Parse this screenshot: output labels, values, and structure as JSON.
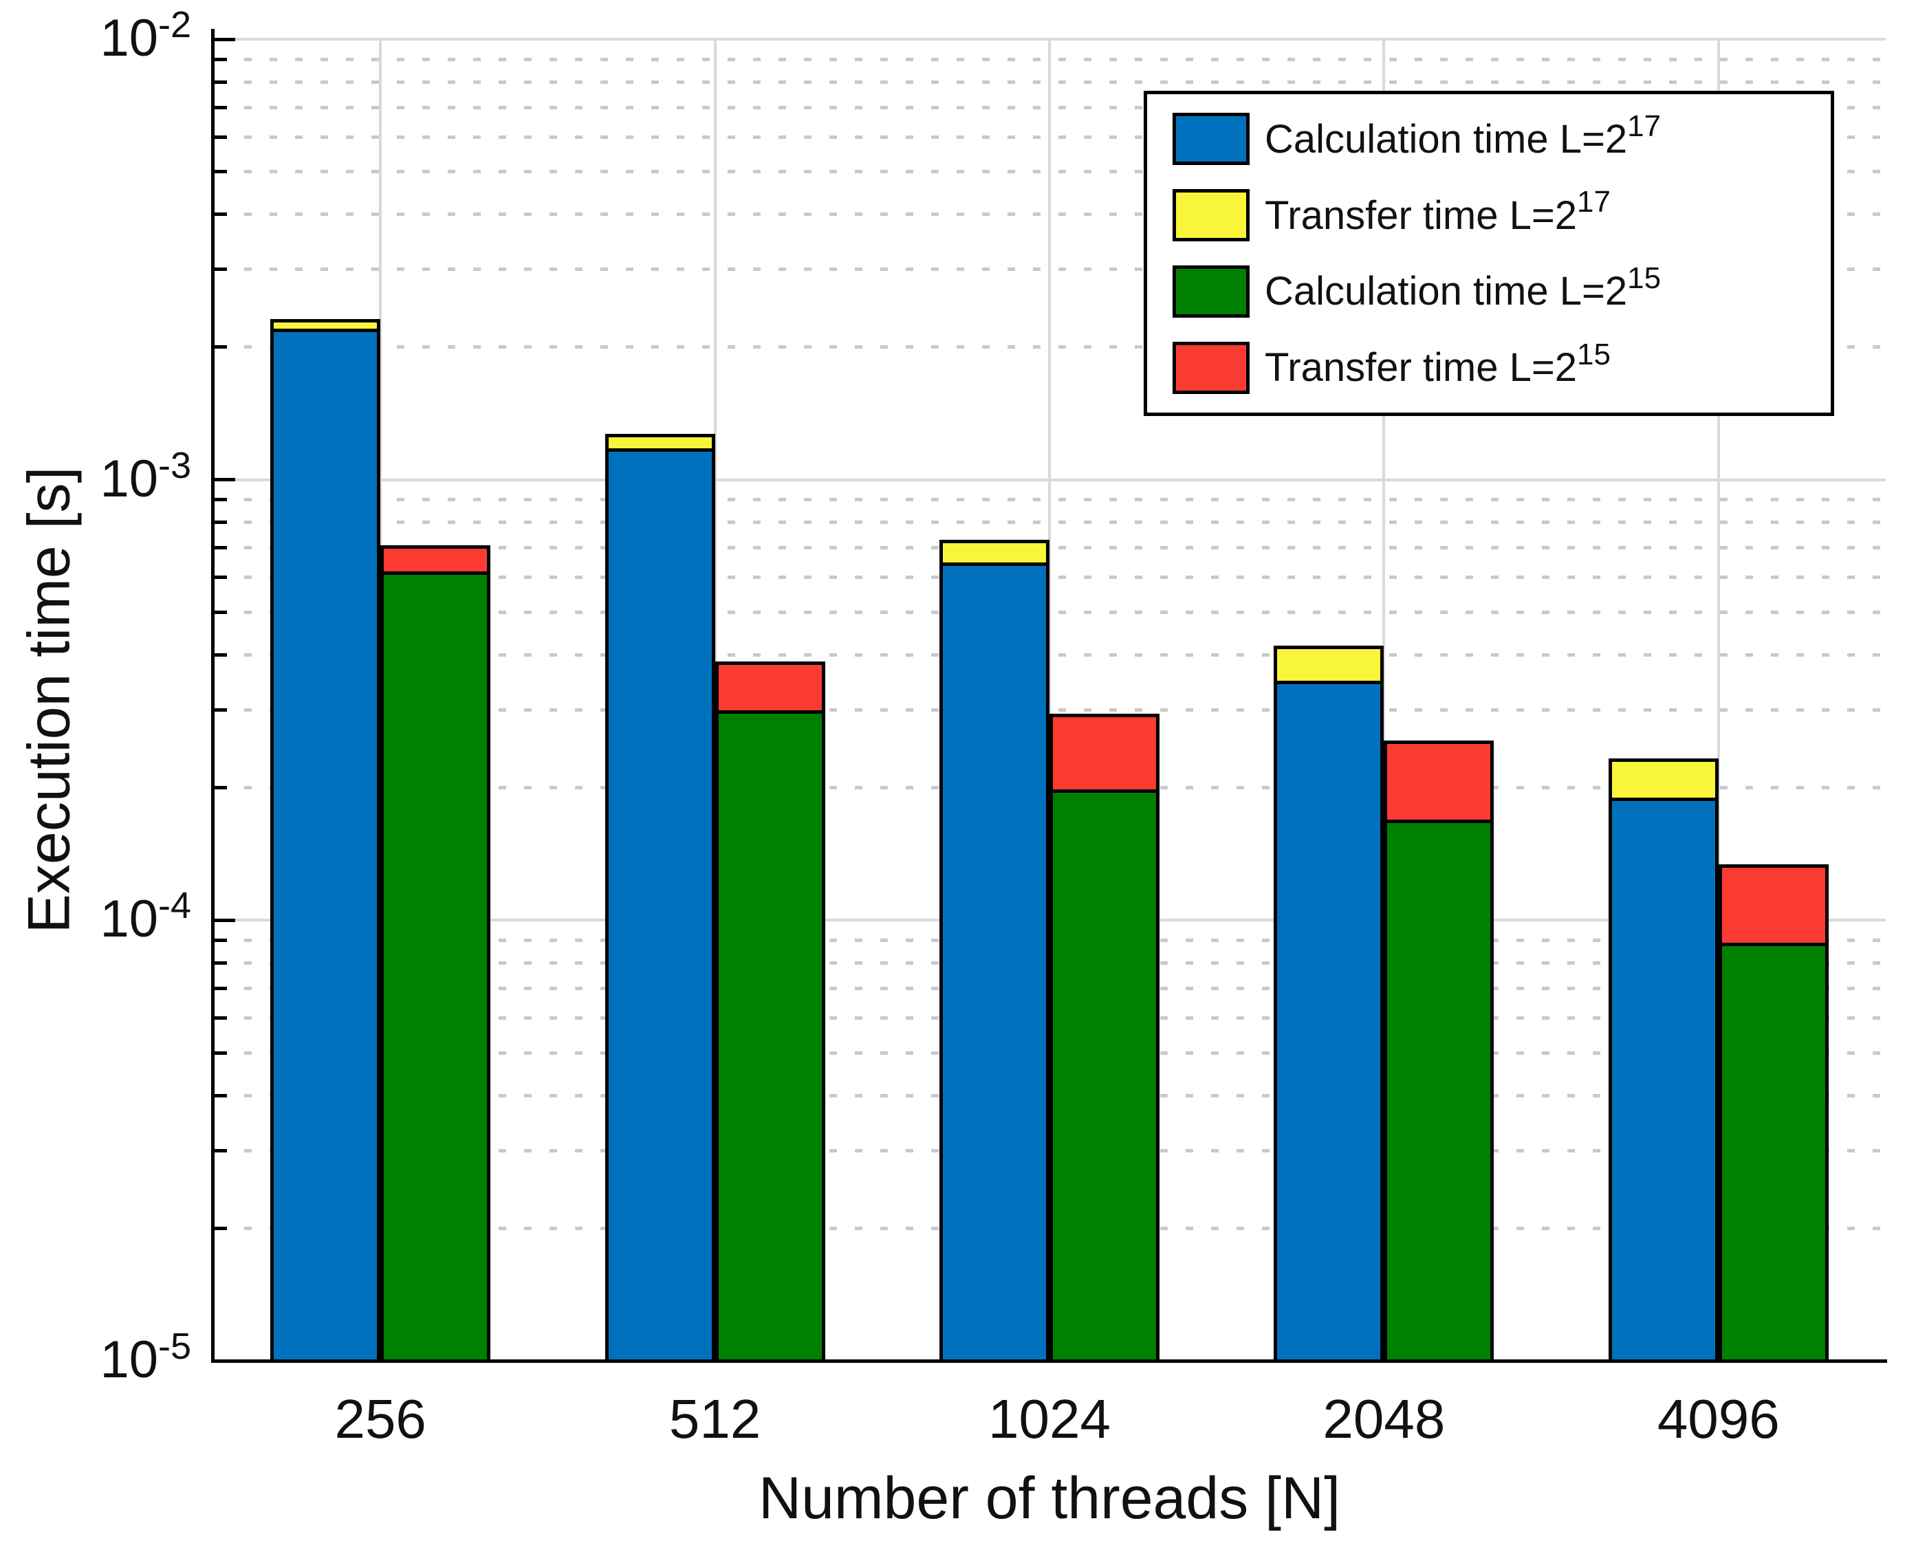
{
  "figure": {
    "background": "#ffffff",
    "axis_color": "#000000",
    "text_color": "#111111",
    "grid_major_color": "#d9d9d9",
    "grid_minor_color": "#c9c9c9"
  },
  "chart_data": {
    "type": "bar",
    "subtype": "grouped-stacked",
    "log_y": true,
    "title": "",
    "xlabel": "Number of threads [N]",
    "ylabel": "Execution time [s]",
    "categories": [
      "256",
      "512",
      "1024",
      "2048",
      "4096"
    ],
    "ylim": [
      1e-05,
      0.01
    ],
    "y_tick_values": [
      0.01,
      0.001,
      0.0001,
      1e-05
    ],
    "grid": "major solid gray horizontal + vertical at categories, minor dotted horizontal (log decades 2-9)",
    "legend_position": "top-right inside axes",
    "series": [
      {
        "name": "Calculation time L=2^17",
        "stack": "L17",
        "color": "#0072BD",
        "values": [
          0.0022,
          0.00118,
          0.00065,
          0.00035,
          0.00019
        ]
      },
      {
        "name": "Transfer time L=2^17",
        "stack": "L17",
        "color": "#F9F53B",
        "values": [
          0.00012,
          9e-05,
          8e-05,
          7e-05,
          4.3e-05
        ]
      },
      {
        "name": "Calculation time L=2^15",
        "stack": "L15",
        "color": "#008000",
        "values": [
          0.00062,
          0.0003,
          0.000198,
          0.000169,
          8.9e-05
        ]
      },
      {
        "name": "Transfer time L=2^15",
        "stack": "L15",
        "color": "#FA3B32",
        "values": [
          9e-05,
          8.7e-05,
          9.6e-05,
          8.7e-05,
          4.5e-05
        ]
      }
    ],
    "stack_totals": {
      "L17": [
        0.00232,
        0.00127,
        0.00073,
        0.00042,
        0.000233
      ],
      "L15": [
        0.00071,
        0.000387,
        0.000294,
        0.000256,
        0.000134
      ]
    }
  },
  "y_axis": {
    "tick_labels": [
      {
        "base": "10",
        "exp": "-2",
        "value": 0.01
      },
      {
        "base": "10",
        "exp": "-3",
        "value": 0.001
      },
      {
        "base": "10",
        "exp": "-4",
        "value": 0.0001
      },
      {
        "base": "10",
        "exp": "-5",
        "value": 1e-05
      }
    ]
  },
  "legend": {
    "entries": [
      {
        "text": "Calculation time L=2",
        "sup": "17",
        "color": "#0072BD"
      },
      {
        "text": "Transfer time L=2",
        "sup": "17",
        "color": "#F9F53B"
      },
      {
        "text": "Calculation time L=2",
        "sup": "15",
        "color": "#008000"
      },
      {
        "text": "Transfer time L=2",
        "sup": "15",
        "color": "#FA3B32"
      }
    ]
  }
}
